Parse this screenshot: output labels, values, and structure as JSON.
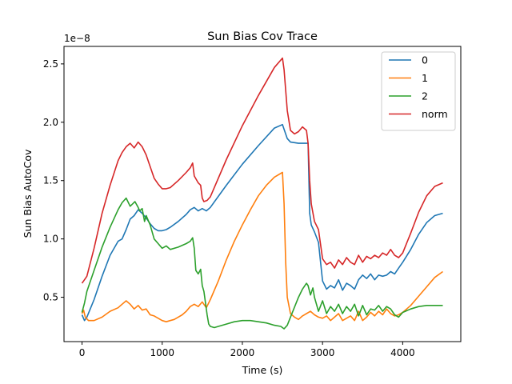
{
  "chart_data": {
    "type": "line",
    "title": "Sun Bias Cov Trace",
    "xlabel": "Time (s)",
    "ylabel": "Sun Bias AutoCov",
    "y_offset_label": "1e−8",
    "y_scale": 1e-08,
    "xlim": [
      -225,
      4725
    ],
    "ylim": [
      0.12,
      2.65
    ],
    "xticks": [
      0,
      1000,
      2000,
      3000,
      4000
    ],
    "xtick_labels": [
      "0",
      "1000",
      "2000",
      "3000",
      "4000"
    ],
    "yticks": [
      0.5,
      1.0,
      1.5,
      2.0,
      2.5
    ],
    "ytick_labels": [
      "0.5",
      "1.0",
      "1.5",
      "2.0",
      "2.5"
    ],
    "grid": false,
    "legend_position": "upper-right",
    "series": [
      {
        "name": "0",
        "color": "#1f77b4",
        "x": [
          0,
          30,
          60,
          150,
          250,
          350,
          450,
          500,
          550,
          600,
          650,
          700,
          750,
          800,
          850,
          900,
          950,
          1000,
          1050,
          1100,
          1200,
          1300,
          1350,
          1400,
          1450,
          1500,
          1550,
          1600,
          1800,
          2000,
          2200,
          2400,
          2500,
          2520,
          2560,
          2600,
          2700,
          2800,
          2820,
          2840,
          2860,
          2900,
          2950,
          3000,
          3050,
          3100,
          3150,
          3200,
          3250,
          3300,
          3350,
          3400,
          3450,
          3500,
          3550,
          3600,
          3650,
          3700,
          3750,
          3800,
          3850,
          3900,
          3950,
          4000,
          4100,
          4200,
          4300,
          4400,
          4500
        ],
        "y": [
          0.35,
          0.3,
          0.33,
          0.48,
          0.68,
          0.86,
          0.98,
          1.0,
          1.08,
          1.17,
          1.2,
          1.25,
          1.22,
          1.18,
          1.13,
          1.09,
          1.07,
          1.07,
          1.08,
          1.1,
          1.15,
          1.21,
          1.25,
          1.27,
          1.24,
          1.26,
          1.24,
          1.27,
          1.46,
          1.64,
          1.8,
          1.95,
          1.98,
          1.94,
          1.86,
          1.83,
          1.82,
          1.82,
          1.82,
          1.22,
          1.12,
          1.06,
          0.97,
          0.64,
          0.57,
          0.6,
          0.58,
          0.65,
          0.56,
          0.62,
          0.6,
          0.57,
          0.65,
          0.69,
          0.66,
          0.7,
          0.65,
          0.69,
          0.68,
          0.69,
          0.72,
          0.7,
          0.75,
          0.8,
          0.91,
          1.04,
          1.14,
          1.2,
          1.22
        ]
      },
      {
        "name": "1",
        "color": "#ff7f0e",
        "x": [
          0,
          20,
          40,
          80,
          150,
          250,
          350,
          450,
          500,
          550,
          600,
          650,
          700,
          750,
          800,
          850,
          900,
          950,
          1000,
          1050,
          1100,
          1150,
          1200,
          1250,
          1300,
          1350,
          1400,
          1450,
          1500,
          1550,
          1600,
          1700,
          1800,
          1900,
          2000,
          2100,
          2200,
          2300,
          2400,
          2500,
          2520,
          2540,
          2560,
          2600,
          2650,
          2700,
          2750,
          2800,
          2850,
          2900,
          2950,
          3000,
          3050,
          3100,
          3150,
          3200,
          3250,
          3300,
          3350,
          3400,
          3450,
          3500,
          3550,
          3600,
          3650,
          3700,
          3750,
          3800,
          3850,
          3900,
          3950,
          4000,
          4100,
          4200,
          4300,
          4400,
          4500
        ],
        "y": [
          0.36,
          0.39,
          0.33,
          0.3,
          0.3,
          0.33,
          0.38,
          0.41,
          0.44,
          0.47,
          0.44,
          0.4,
          0.43,
          0.39,
          0.4,
          0.35,
          0.34,
          0.32,
          0.3,
          0.29,
          0.3,
          0.31,
          0.33,
          0.35,
          0.38,
          0.42,
          0.44,
          0.42,
          0.46,
          0.41,
          0.48,
          0.64,
          0.82,
          0.98,
          1.12,
          1.25,
          1.37,
          1.46,
          1.53,
          1.57,
          1.3,
          0.8,
          0.5,
          0.36,
          0.33,
          0.31,
          0.34,
          0.36,
          0.38,
          0.35,
          0.33,
          0.32,
          0.34,
          0.3,
          0.33,
          0.36,
          0.3,
          0.32,
          0.34,
          0.3,
          0.38,
          0.3,
          0.33,
          0.37,
          0.34,
          0.38,
          0.35,
          0.4,
          0.36,
          0.34,
          0.35,
          0.37,
          0.43,
          0.51,
          0.59,
          0.67,
          0.72
        ]
      },
      {
        "name": "2",
        "color": "#2ca02c",
        "x": [
          0,
          30,
          60,
          150,
          250,
          350,
          450,
          500,
          550,
          600,
          630,
          660,
          700,
          720,
          750,
          780,
          800,
          850,
          900,
          950,
          1000,
          1050,
          1100,
          1200,
          1300,
          1350,
          1380,
          1400,
          1420,
          1450,
          1480,
          1500,
          1520,
          1540,
          1560,
          1580,
          1600,
          1650,
          1700,
          1800,
          1900,
          2000,
          2100,
          2200,
          2300,
          2400,
          2480,
          2520,
          2560,
          2600,
          2700,
          2750,
          2800,
          2820,
          2850,
          2880,
          2900,
          2950,
          3000,
          3050,
          3100,
          3150,
          3200,
          3250,
          3300,
          3350,
          3400,
          3450,
          3500,
          3550,
          3600,
          3650,
          3700,
          3750,
          3800,
          3850,
          3900,
          3950,
          4000,
          4100,
          4200,
          4300,
          4400,
          4500
        ],
        "y": [
          0.37,
          0.45,
          0.55,
          0.73,
          0.93,
          1.1,
          1.25,
          1.31,
          1.35,
          1.28,
          1.3,
          1.32,
          1.27,
          1.24,
          1.26,
          1.15,
          1.2,
          1.12,
          1.0,
          0.96,
          0.92,
          0.94,
          0.91,
          0.93,
          0.96,
          0.98,
          1.01,
          0.92,
          0.73,
          0.7,
          0.74,
          0.6,
          0.55,
          0.45,
          0.35,
          0.27,
          0.25,
          0.24,
          0.25,
          0.27,
          0.29,
          0.3,
          0.3,
          0.29,
          0.28,
          0.26,
          0.25,
          0.23,
          0.26,
          0.33,
          0.5,
          0.57,
          0.62,
          0.6,
          0.52,
          0.58,
          0.5,
          0.38,
          0.47,
          0.36,
          0.42,
          0.38,
          0.44,
          0.36,
          0.42,
          0.38,
          0.44,
          0.34,
          0.43,
          0.35,
          0.4,
          0.39,
          0.43,
          0.38,
          0.42,
          0.4,
          0.35,
          0.33,
          0.37,
          0.4,
          0.42,
          0.43,
          0.43,
          0.43
        ]
      },
      {
        "name": "norm",
        "color": "#d62728",
        "x": [
          0,
          30,
          60,
          150,
          250,
          350,
          450,
          500,
          550,
          600,
          650,
          700,
          750,
          800,
          850,
          900,
          950,
          1000,
          1050,
          1100,
          1200,
          1300,
          1350,
          1380,
          1400,
          1450,
          1480,
          1500,
          1520,
          1560,
          1600,
          1800,
          2000,
          2200,
          2400,
          2500,
          2520,
          2560,
          2600,
          2650,
          2700,
          2750,
          2800,
          2820,
          2840,
          2860,
          2900,
          2950,
          3000,
          3050,
          3100,
          3150,
          3200,
          3250,
          3300,
          3350,
          3400,
          3450,
          3500,
          3550,
          3600,
          3650,
          3700,
          3750,
          3800,
          3850,
          3900,
          3950,
          4000,
          4100,
          4200,
          4300,
          4400,
          4500
        ],
        "y": [
          0.62,
          0.65,
          0.68,
          0.92,
          1.22,
          1.46,
          1.67,
          1.74,
          1.79,
          1.82,
          1.78,
          1.83,
          1.79,
          1.72,
          1.62,
          1.52,
          1.47,
          1.43,
          1.43,
          1.44,
          1.5,
          1.57,
          1.61,
          1.65,
          1.54,
          1.48,
          1.46,
          1.35,
          1.32,
          1.33,
          1.36,
          1.68,
          1.97,
          2.23,
          2.47,
          2.55,
          2.45,
          2.1,
          1.93,
          1.9,
          1.92,
          1.96,
          1.93,
          1.82,
          1.5,
          1.3,
          1.15,
          1.08,
          0.83,
          0.78,
          0.8,
          0.75,
          0.82,
          0.78,
          0.84,
          0.8,
          0.78,
          0.86,
          0.8,
          0.85,
          0.83,
          0.86,
          0.84,
          0.88,
          0.86,
          0.91,
          0.86,
          0.84,
          0.88,
          1.05,
          1.23,
          1.37,
          1.45,
          1.48
        ]
      }
    ]
  }
}
